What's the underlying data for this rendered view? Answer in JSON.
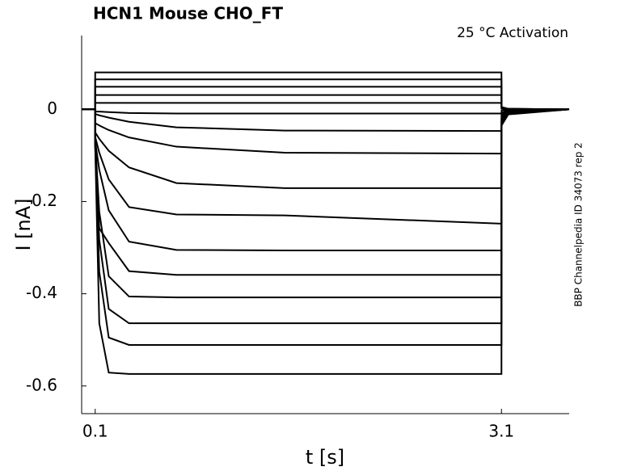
{
  "chart_data": {
    "type": "line",
    "title": "HCN1  Mouse  CHO_FT",
    "annotation": "25 °C  Activation",
    "side_note": "BBP Channelpedia ID 34073 rep 2",
    "x_label": "t [s]",
    "y_label": "I [nA]",
    "color": "#000000",
    "xlim": [
      0,
      3.6
    ],
    "ylim": [
      -0.66,
      0.16
    ],
    "xticks": [
      0.1,
      3.1
    ],
    "yticks": [
      0,
      -0.2,
      -0.4,
      -0.6
    ],
    "x": [
      0,
      0.099,
      0.1,
      0.13,
      0.2,
      0.35,
      0.7,
      1.5,
      3.1,
      3.101,
      3.15,
      3.6
    ],
    "series": [
      {
        "values": [
          0,
          0,
          0.08,
          0.08,
          0.08,
          0.08,
          0.08,
          0.08,
          0.08,
          0.005,
          0.001,
          0
        ]
      },
      {
        "values": [
          0,
          0,
          0.065,
          0.065,
          0.065,
          0.065,
          0.065,
          0.065,
          0.065,
          0.004,
          0.001,
          0
        ]
      },
      {
        "values": [
          0,
          0,
          0.049,
          0.049,
          0.049,
          0.049,
          0.049,
          0.049,
          0.049,
          0.003,
          0.001,
          0
        ]
      },
      {
        "values": [
          0,
          0,
          0.031,
          0.031,
          0.031,
          0.031,
          0.031,
          0.031,
          0.031,
          0.002,
          0,
          0
        ]
      },
      {
        "values": [
          0,
          0,
          0.014,
          0.014,
          0.014,
          0.014,
          0.014,
          0.014,
          0.014,
          0.001,
          0,
          0
        ]
      },
      {
        "values": [
          0,
          0,
          -0.005,
          -0.005,
          -0.006,
          -0.008,
          -0.009,
          -0.009,
          -0.009,
          -0.003,
          -0.001,
          0
        ]
      },
      {
        "values": [
          0,
          0,
          -0.01,
          -0.013,
          -0.018,
          -0.027,
          -0.039,
          -0.046,
          -0.047,
          -0.008,
          -0.002,
          0
        ]
      },
      {
        "values": [
          0,
          0,
          -0.03,
          -0.035,
          -0.045,
          -0.061,
          -0.081,
          -0.094,
          -0.096,
          -0.012,
          -0.003,
          0
        ]
      },
      {
        "values": [
          0,
          0,
          -0.05,
          -0.064,
          -0.09,
          -0.126,
          -0.16,
          -0.171,
          -0.171,
          -0.016,
          -0.004,
          0
        ]
      },
      {
        "values": [
          0,
          0,
          -0.06,
          -0.094,
          -0.152,
          -0.212,
          -0.228,
          -0.23,
          -0.248,
          -0.02,
          -0.005,
          0
        ]
      },
      {
        "values": [
          0,
          0,
          -0.07,
          -0.131,
          -0.219,
          -0.287,
          -0.305,
          -0.306,
          -0.306,
          -0.023,
          -0.006,
          0
        ]
      },
      {
        "values": [
          0,
          0,
          -0.07,
          -0.258,
          -0.29,
          -0.351,
          -0.359,
          -0.359,
          -0.359,
          -0.026,
          -0.007,
          0
        ]
      },
      {
        "values": [
          0,
          0,
          -0.07,
          -0.222,
          -0.362,
          -0.406,
          -0.408,
          -0.408,
          -0.408,
          -0.028,
          -0.008,
          0
        ]
      },
      {
        "values": [
          0,
          0,
          -0.08,
          -0.283,
          -0.433,
          -0.464,
          -0.464,
          -0.464,
          -0.464,
          -0.03,
          -0.009,
          0
        ]
      },
      {
        "values": [
          0,
          0,
          -0.08,
          -0.352,
          -0.495,
          -0.511,
          -0.511,
          -0.511,
          -0.511,
          -0.032,
          -0.01,
          0
        ]
      },
      {
        "values": [
          0,
          0,
          -0.08,
          -0.464,
          -0.571,
          -0.574,
          -0.574,
          -0.574,
          -0.574,
          -0.035,
          -0.011,
          0
        ]
      }
    ]
  }
}
